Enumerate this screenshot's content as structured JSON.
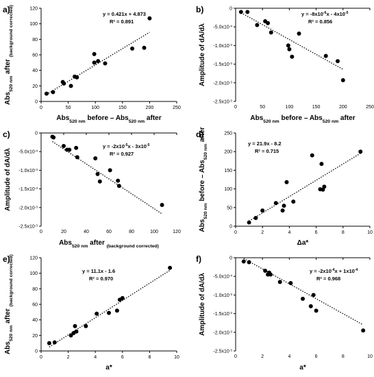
{
  "chart_data": [
    {
      "type": "scatter",
      "panel_label": "a)",
      "xlabel": "Abs520 nm before – Abs520 nm after",
      "xlabel_parts": [
        {
          "t": "Abs",
          "s": "n"
        },
        {
          "t": "520 nm",
          "s": "sub"
        },
        {
          "t": " before – Abs",
          "s": "n"
        },
        {
          "t": "520 nm",
          "s": "sub"
        },
        {
          "t": " after",
          "s": "n"
        }
      ],
      "ylabel": "Abs520 nm after (background corrected)",
      "ylabel_parts": [
        {
          "t": "Abs",
          "s": "n"
        },
        {
          "t": "520 nm",
          "s": "sub"
        },
        {
          "t": " after ",
          "s": "n"
        },
        {
          "t": "(background corrected)",
          "s": "sub"
        }
      ],
      "equation": "y = 0.421x + 4.873",
      "equation_parts": [
        {
          "t": "y = 0.421x + 4.873",
          "s": "n"
        }
      ],
      "r2": "R² = 0.891",
      "xlim": [
        0,
        250
      ],
      "ylim": [
        0,
        120
      ],
      "xticks": [
        "0",
        "50",
        "100",
        "150",
        "200",
        "250"
      ],
      "yticks": [
        "0",
        "20",
        "40",
        "60",
        "80",
        "100",
        "120"
      ],
      "trend": {
        "slope": 0.421,
        "intercept": 4.873,
        "x_range": [
          10,
          200
        ]
      },
      "points": [
        [
          10,
          10
        ],
        [
          22,
          12
        ],
        [
          40,
          25
        ],
        [
          42,
          23
        ],
        [
          55,
          20
        ],
        [
          62,
          32
        ],
        [
          66,
          31
        ],
        [
          98,
          61
        ],
        [
          98,
          50
        ],
        [
          105,
          52
        ],
        [
          118,
          49
        ],
        [
          168,
          68
        ],
        [
          190,
          69
        ],
        [
          200,
          107
        ]
      ]
    },
    {
      "type": "scatter",
      "panel_label": "b)",
      "xlabel": "Abs520 nm before – Abs520 nm after",
      "xlabel_parts": [
        {
          "t": "Abs",
          "s": "n"
        },
        {
          "t": "520 nm",
          "s": "sub"
        },
        {
          "t": " before – Abs",
          "s": "n"
        },
        {
          "t": "520 nm",
          "s": "sub"
        },
        {
          "t": " after",
          "s": "n"
        }
      ],
      "ylabel": "Amplitude of dA/dλ",
      "ylabel_parts": [
        {
          "t": "Amplitude of dA/dλ",
          "s": "n"
        }
      ],
      "equation": "y = -8x10-6x - 4x10-5",
      "equation_parts": [
        {
          "t": "y = -8x10",
          "s": "n"
        },
        {
          "t": "-6",
          "s": "sup"
        },
        {
          "t": "x - 4x10",
          "s": "n"
        },
        {
          "t": "-5",
          "s": "sup"
        }
      ],
      "r2": "R² = 0.856",
      "xlim": [
        0,
        250
      ],
      "ylim": [
        -0.0025,
        0
      ],
      "xticks": [
        "0",
        "50",
        "100",
        "150",
        "200",
        "250"
      ],
      "yticks": [
        {
          "m": "-2.5x10",
          "e": "-3"
        },
        {
          "m": "-2.0x10",
          "e": "-3"
        },
        {
          "m": "-1.5x10",
          "e": "-3"
        },
        {
          "m": "-1.0x10",
          "e": "-3"
        },
        {
          "m": "-5.0x10",
          "e": "-4"
        },
        {
          "m": "0",
          "e": ""
        }
      ],
      "trend": {
        "slope": -8e-06,
        "intercept": -4e-05,
        "x_range": [
          10,
          200
        ]
      },
      "points": [
        [
          10,
          -0.0001
        ],
        [
          22,
          -0.0001
        ],
        [
          40,
          -0.00045
        ],
        [
          55,
          -0.00035
        ],
        [
          60,
          -0.0004
        ],
        [
          66,
          -0.00065
        ],
        [
          98,
          -0.001
        ],
        [
          100,
          -0.0011
        ],
        [
          105,
          -0.0013
        ],
        [
          118,
          -0.00068
        ],
        [
          168,
          -0.00128
        ],
        [
          190,
          -0.00142
        ],
        [
          200,
          -0.00193
        ]
      ]
    },
    {
      "type": "scatter",
      "panel_label": "c)",
      "xlabel": "Abs520 nm after (background corrected)",
      "xlabel_parts": [
        {
          "t": "Abs",
          "s": "n"
        },
        {
          "t": "520 nm",
          "s": "sub"
        },
        {
          "t": " after ",
          "s": "n"
        },
        {
          "t": "(background corrected)",
          "s": "sub"
        }
      ],
      "ylabel": "Amplitude of dA/dλ",
      "ylabel_parts": [
        {
          "t": "Amplitude of dA/dλ",
          "s": "n"
        }
      ],
      "equation": "y = -2x10-5x - 3x10-5",
      "equation_parts": [
        {
          "t": "y = -2x10",
          "s": "n"
        },
        {
          "t": "-5",
          "s": "sup"
        },
        {
          "t": "x - 3x10",
          "s": "n"
        },
        {
          "t": "-5",
          "s": "sup"
        }
      ],
      "r2": "R² = 0.927",
      "xlim": [
        0,
        120
      ],
      "ylim": [
        -0.0025,
        0
      ],
      "xticks": [
        "0",
        "20",
        "40",
        "60",
        "80",
        "100",
        "120"
      ],
      "yticks": [
        {
          "m": "-2.5x10",
          "e": "-3"
        },
        {
          "m": "-2.0x10",
          "e": "-3"
        },
        {
          "m": "-1.5x10",
          "e": "-3"
        },
        {
          "m": "-1.0x10",
          "e": "-3"
        },
        {
          "m": "-5.0x10",
          "e": "-4"
        },
        {
          "m": "0",
          "e": ""
        }
      ],
      "trend": {
        "slope": -2e-05,
        "intercept": -3e-05,
        "x_range": [
          10,
          107
        ]
      },
      "points": [
        [
          10,
          -0.0001
        ],
        [
          11,
          -0.00012
        ],
        [
          20,
          -0.00035
        ],
        [
          23,
          -0.00045
        ],
        [
          25,
          -0.00045
        ],
        [
          31,
          -0.0004
        ],
        [
          32,
          -0.00065
        ],
        [
          48,
          -0.00068
        ],
        [
          50,
          -0.0011
        ],
        [
          52,
          -0.0013
        ],
        [
          61,
          -0.001
        ],
        [
          68,
          -0.00128
        ],
        [
          69,
          -0.00142
        ],
        [
          107,
          -0.00193
        ]
      ]
    },
    {
      "type": "scatter",
      "panel_label": "d)",
      "xlabel": "Δa*",
      "xlabel_parts": [
        {
          "t": "Δa*",
          "s": "n"
        }
      ],
      "ylabel": "Abs520 nm before – Abs520 nm after",
      "ylabel_parts": [
        {
          "t": "Abs",
          "s": "n"
        },
        {
          "t": "520 nm",
          "s": "sub"
        },
        {
          "t": " before – Abs",
          "s": "n"
        },
        {
          "t": "520 nm",
          "s": "sub"
        },
        {
          "t": " after",
          "s": "n"
        }
      ],
      "equation": "y = 21.9x - 8.2",
      "equation_parts": [
        {
          "t": "y = 21.9x - 8.2",
          "s": "n"
        }
      ],
      "r2": "R² = 0.715",
      "xlim": [
        0,
        10
      ],
      "ylim": [
        0,
        250
      ],
      "xticks": [
        "0",
        "2",
        "4",
        "6",
        "8",
        "10"
      ],
      "yticks": [
        "0",
        "50",
        "100",
        "150",
        "200",
        "250"
      ],
      "trend": {
        "slope": 21.9,
        "intercept": -8.2,
        "x_range": [
          1.0,
          9.3
        ]
      },
      "points": [
        [
          1.0,
          10
        ],
        [
          1.5,
          22
        ],
        [
          2.0,
          42
        ],
        [
          3.0,
          62
        ],
        [
          3.5,
          42
        ],
        [
          3.6,
          55
        ],
        [
          3.8,
          118
        ],
        [
          4.3,
          66
        ],
        [
          5.7,
          190
        ],
        [
          6.3,
          99
        ],
        [
          6.4,
          167
        ],
        [
          6.5,
          98
        ],
        [
          6.6,
          106
        ],
        [
          9.3,
          200
        ]
      ]
    },
    {
      "type": "scatter",
      "panel_label": "e)",
      "xlabel": "a*",
      "xlabel_parts": [
        {
          "t": "a*",
          "s": "n"
        }
      ],
      "ylabel": "Abs520 nm after (background corrected)",
      "ylabel_parts": [
        {
          "t": "Abs",
          "s": "n"
        },
        {
          "t": "520 nm",
          "s": "sub"
        },
        {
          "t": " after ",
          "s": "n"
        },
        {
          "t": "(background corrected)",
          "s": "sub"
        }
      ],
      "equation": "y = 11.1x - 1.6",
      "equation_parts": [
        {
          "t": "y = 11.1x - 1.6",
          "s": "n"
        }
      ],
      "r2": "R² = 0.970",
      "xlim": [
        0,
        10
      ],
      "ylim": [
        0,
        120
      ],
      "xticks": [
        "0",
        "2",
        "4",
        "6",
        "8",
        "10"
      ],
      "yticks": [
        "0",
        "20",
        "40",
        "60",
        "80",
        "100",
        "120"
      ],
      "trend": {
        "slope": 11.1,
        "intercept": -1.6,
        "x_range": [
          0.6,
          9.5
        ]
      },
      "points": [
        [
          0.6,
          10
        ],
        [
          1.0,
          11
        ],
        [
          2.2,
          20
        ],
        [
          2.4,
          23
        ],
        [
          2.5,
          32
        ],
        [
          2.6,
          25
        ],
        [
          3.3,
          32
        ],
        [
          4.1,
          48
        ],
        [
          5.0,
          49
        ],
        [
          5.6,
          52
        ],
        [
          5.8,
          66
        ],
        [
          6.0,
          68
        ],
        [
          9.5,
          107
        ]
      ]
    },
    {
      "type": "scatter",
      "panel_label": "f)",
      "xlabel": "a*",
      "xlabel_parts": [
        {
          "t": "a*",
          "s": "n"
        }
      ],
      "ylabel": "Amplitude of dA/dλ",
      "ylabel_parts": [
        {
          "t": "Amplitude of dA/dλ",
          "s": "n"
        }
      ],
      "equation": "y = -2x10-4x + 1x10-4",
      "equation_parts": [
        {
          "t": "y = -2x10",
          "s": "n"
        },
        {
          "t": "-4",
          "s": "sup"
        },
        {
          "t": "x + 1x10",
          "s": "n"
        },
        {
          "t": "-4",
          "s": "sup"
        }
      ],
      "r2": "R² = 0.968",
      "xlim": [
        0,
        10
      ],
      "ylim": [
        -0.0025,
        0
      ],
      "xticks": [
        "0",
        "2",
        "4",
        "6",
        "8",
        "10"
      ],
      "yticks": [
        {
          "m": "-2.5x10",
          "e": "-3"
        },
        {
          "m": "-2.0x10",
          "e": "-3"
        },
        {
          "m": "-1.5x10",
          "e": "-3"
        },
        {
          "m": "-1.0x10",
          "e": "-3"
        },
        {
          "m": "-5.0x10",
          "e": "-4"
        },
        {
          "m": "0",
          "e": ""
        }
      ],
      "trend": {
        "slope": -0.0002,
        "intercept": 0.0001,
        "x_range": [
          0.6,
          9.5
        ]
      },
      "points": [
        [
          0.6,
          -0.0001
        ],
        [
          1.0,
          -0.00012
        ],
        [
          2.2,
          -0.00035
        ],
        [
          2.4,
          -0.00045
        ],
        [
          2.5,
          -0.0004
        ],
        [
          2.6,
          -0.00045
        ],
        [
          3.3,
          -0.00065
        ],
        [
          4.1,
          -0.00068
        ],
        [
          5.0,
          -0.0011
        ],
        [
          5.6,
          -0.0013
        ],
        [
          5.8,
          -0.001
        ],
        [
          6.0,
          -0.00142
        ],
        [
          9.5,
          -0.00195
        ]
      ]
    }
  ]
}
